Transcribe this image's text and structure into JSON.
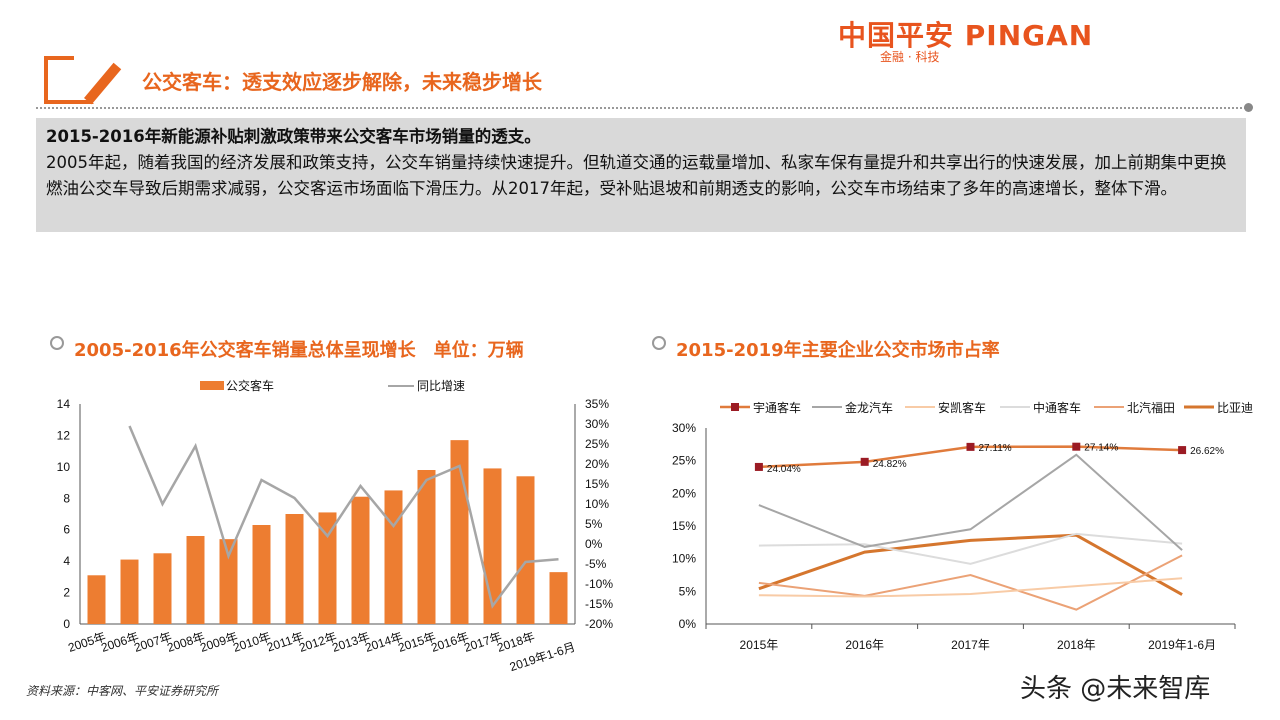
{
  "brand": {
    "name": "中国平安 PINGAN",
    "tagline": "金融 · 科技"
  },
  "header": {
    "title": "公交客车：透支效应逐步解除，未来稳步增长"
  },
  "summary": {
    "heading": "2015-2016年新能源补贴刺激政策带来公交客车市场销量的透支。",
    "body": "2005年起，随着我国的经济发展和政策支持，公交车销量持续快速提升。但轨道交通的运载量增加、私家车保有量提升和共享出行的快速发展，加上前期集中更换燃油公交车导致后期需求减弱，公交客运市场面临下滑压力。从2017年起，受补贴退坡和前期透支的影响，公交车市场结束了多年的高速增长，整体下滑。"
  },
  "source": "资料来源：中客网、平安证券研究所",
  "watermark": "头条 @未来智库",
  "chart_data": [
    {
      "type": "bar",
      "title": "2005-2016年公交客车销量总体呈现增长　单位：万辆",
      "categories": [
        "2005年",
        "2006年",
        "2007年",
        "2008年",
        "2009年",
        "2010年",
        "2011年",
        "2012年",
        "2013年",
        "2014年",
        "2015年",
        "2016年",
        "2017年",
        "2018年",
        "2019年1-6月"
      ],
      "series": [
        {
          "name": "公交客车",
          "type": "bar",
          "axis": "left",
          "color": "#ed7d31",
          "values": [
            3.1,
            4.1,
            4.5,
            5.6,
            5.4,
            6.3,
            7.0,
            7.1,
            8.1,
            8.5,
            9.8,
            11.7,
            9.9,
            9.4,
            3.3
          ]
        },
        {
          "name": "同比增速",
          "type": "line",
          "axis": "right",
          "color": "#a6a6a6",
          "values": [
            null,
            29.5,
            10,
            24.5,
            -3,
            16,
            11.5,
            2,
            14.5,
            4.5,
            16,
            19.5,
            -15.5,
            -4.5,
            -3.8
          ]
        }
      ],
      "ylim": [
        0,
        14
      ],
      "yticks": [
        "0",
        "2",
        "4",
        "6",
        "8",
        "10",
        "12",
        "14"
      ],
      "y2lim": [
        -20,
        35
      ],
      "y2ticks": [
        "-20%",
        "-15%",
        "-10%",
        "-5%",
        "0%",
        "5%",
        "10%",
        "15%",
        "20%",
        "25%",
        "30%",
        "35%"
      ],
      "legend": "top",
      "grid": false
    },
    {
      "type": "line",
      "title": "2015-2019年主要企业公交市场市占率",
      "categories": [
        "2015年",
        "2016年",
        "2017年",
        "2018年",
        "2019年1-6月"
      ],
      "series": [
        {
          "name": "宇通客车",
          "color": "#e07b3c",
          "marker": "#9b1b24",
          "width": 2.5,
          "labels": [
            "24.04%",
            "24.82%",
            "27.11%",
            "27.14%",
            "26.62%"
          ],
          "values": [
            24.04,
            24.82,
            27.11,
            27.14,
            26.62
          ]
        },
        {
          "name": "金龙汽车",
          "color": "#a6a6a6",
          "width": 2,
          "values": [
            18.2,
            11.8,
            14.5,
            25.9,
            11.3
          ]
        },
        {
          "name": "安凯客车",
          "color": "#f8cba6",
          "width": 2,
          "values": [
            4.4,
            4.2,
            4.6,
            5.8,
            7.0
          ]
        },
        {
          "name": "中通客车",
          "color": "#dcdcdc",
          "width": 2,
          "values": [
            12.0,
            12.2,
            9.2,
            13.8,
            12.3
          ]
        },
        {
          "name": "北汽福田",
          "color": "#eba276",
          "width": 2,
          "values": [
            6.3,
            4.3,
            7.5,
            2.2,
            10.5
          ]
        },
        {
          "name": "比亚迪",
          "color": "#d5762e",
          "width": 3,
          "values": [
            5.4,
            11.0,
            12.8,
            13.6,
            4.5
          ]
        }
      ],
      "ylim": [
        0,
        30
      ],
      "yticks": [
        "0%",
        "5%",
        "10%",
        "15%",
        "20%",
        "25%",
        "30%"
      ],
      "legend": "top",
      "grid": false
    }
  ]
}
